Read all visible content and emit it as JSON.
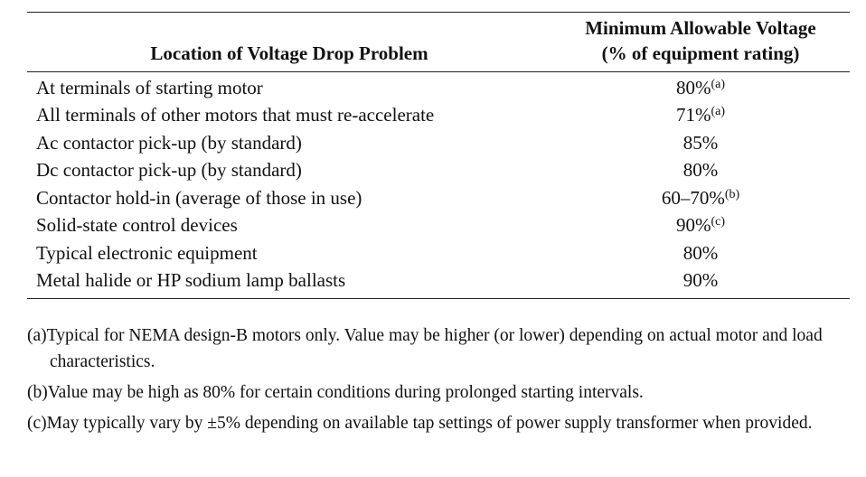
{
  "table": {
    "header": {
      "location": "Location of Voltage Drop Problem",
      "voltage_line1": "Minimum Allowable Voltage",
      "voltage_line2": "(% of equipment rating)"
    },
    "rows": [
      {
        "location": "At terminals of starting motor",
        "value": "80%",
        "note": "(a)"
      },
      {
        "location": "All terminals of other motors that must re-accelerate",
        "value": "71%",
        "note": "(a)"
      },
      {
        "location": "Ac contactor pick-up (by standard)",
        "value": "85%",
        "note": ""
      },
      {
        "location": "Dc contactor pick-up (by standard)",
        "value": "80%",
        "note": ""
      },
      {
        "location": "Contactor hold-in (average of those in use)",
        "value": "60–70%",
        "note": "(b)"
      },
      {
        "location": "Solid-state control devices",
        "value": "90%",
        "note": "(c)"
      },
      {
        "location": "Typical electronic equipment",
        "value": "80%",
        "note": ""
      },
      {
        "location": "Metal halide or HP sodium lamp ballasts",
        "value": "90%",
        "note": ""
      }
    ]
  },
  "footnotes": [
    {
      "mark": "(a)",
      "text": "Typical for NEMA design-B motors only. Value may be higher (or lower) depending on actual motor and load characteristics."
    },
    {
      "mark": "(b)",
      "text": "Value may be high as 80% for certain conditions during prolonged starting intervals."
    },
    {
      "mark": "(c)",
      "text": "May typically vary by ±5% depending on available tap settings of power supply transformer when provided."
    }
  ]
}
